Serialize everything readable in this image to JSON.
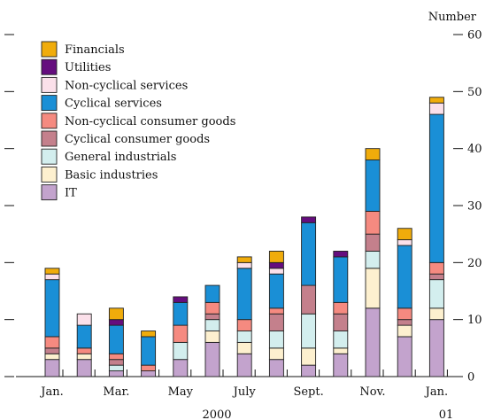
{
  "chart_data": {
    "type": "bar",
    "stacked": true,
    "ylabel": "Number",
    "ylim": [
      0,
      60
    ],
    "yticks": [
      0,
      10,
      20,
      30,
      40,
      50,
      60
    ],
    "grid": false,
    "legend_placement": "top-left",
    "categories": [
      "Jan.",
      "Feb.",
      "Mar.",
      "Apr.",
      "May",
      "June",
      "July",
      "Aug.",
      "Sept.",
      "Oct.",
      "Nov.",
      "Dec.",
      "Jan."
    ],
    "x_tick_labels": [
      "Jan.",
      "",
      "Mar.",
      "",
      "May",
      "",
      "July",
      "",
      "Sept.",
      "",
      "Nov.",
      "",
      "Jan."
    ],
    "year_labels": [
      "2000",
      "01"
    ],
    "series": [
      {
        "name": "IT",
        "color": "#c3a3cd",
        "values": [
          3,
          3,
          1,
          1,
          3,
          6,
          4,
          3,
          2,
          4,
          12,
          7,
          10
        ]
      },
      {
        "name": "Basic industries",
        "color": "#fdf0cf",
        "values": [
          1,
          1,
          0,
          0,
          0,
          2,
          2,
          2,
          3,
          1,
          7,
          2,
          2
        ]
      },
      {
        "name": "General industrials",
        "color": "#d3eeee",
        "values": [
          0,
          0,
          1,
          0,
          3,
          2,
          2,
          3,
          6,
          3,
          3,
          0,
          5
        ]
      },
      {
        "name": "Cyclical consumer goods",
        "color": "#c4808c",
        "values": [
          1,
          0,
          1,
          0,
          0,
          1,
          0,
          3,
          5,
          3,
          3,
          1,
          1
        ]
      },
      {
        "name": "Non-cyclical consumer goods",
        "color": "#f58a80",
        "values": [
          2,
          1,
          1,
          1,
          3,
          2,
          2,
          1,
          0,
          2,
          4,
          2,
          2
        ]
      },
      {
        "name": "Cyclical services",
        "color": "#1a8fd6",
        "values": [
          10,
          4,
          5,
          5,
          4,
          3,
          9,
          6,
          11,
          8,
          9,
          11,
          26
        ]
      },
      {
        "name": "Non-cyclical services",
        "color": "#fbe0ea",
        "values": [
          1,
          2,
          0,
          0,
          0,
          0,
          1,
          1,
          0,
          0,
          0,
          1,
          2
        ]
      },
      {
        "name": "Utilities",
        "color": "#650d7e",
        "values": [
          0,
          0,
          1,
          0,
          1,
          0,
          0,
          1,
          1,
          1,
          0,
          0,
          0
        ]
      },
      {
        "name": "Financials",
        "color": "#f0ac0b",
        "values": [
          1,
          0,
          2,
          1,
          0,
          0,
          1,
          2,
          0,
          0,
          2,
          2,
          1
        ]
      }
    ]
  }
}
